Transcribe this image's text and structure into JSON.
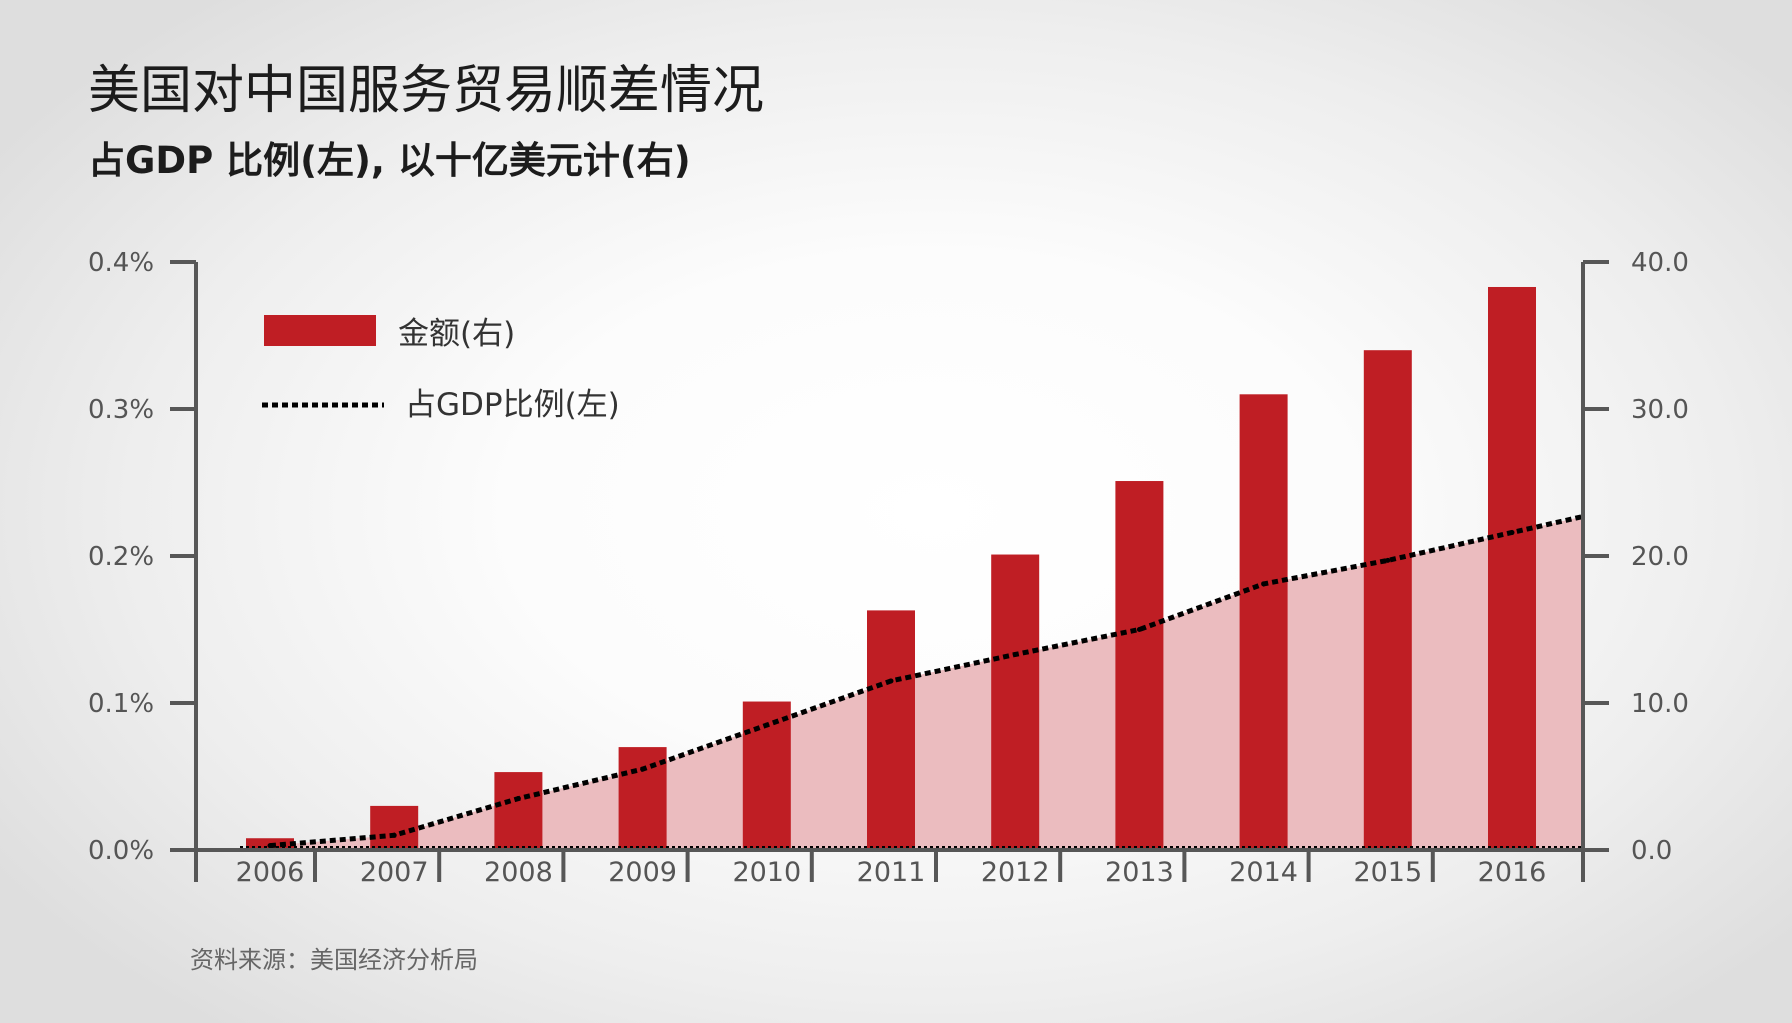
{
  "title": "美国对中国服务贸易顺差情况",
  "subtitle": "占GDP 比例(左), 以十亿美元计(右)",
  "source": "资料来源：美国经济分析局",
  "colors": {
    "bar": "#bf1e24",
    "area_fill": "#ebbcbf",
    "axis": "#575757",
    "line": "#000000"
  },
  "chart_data": {
    "type": "bar",
    "categories": [
      "2006",
      "2007",
      "2008",
      "2009",
      "2010",
      "2011",
      "2012",
      "2013",
      "2014",
      "2015",
      "2016"
    ],
    "series": [
      {
        "name": "金额(右)",
        "type": "bar",
        "axis": "right",
        "values": [
          0.8,
          3.0,
          5.3,
          7.0,
          10.1,
          16.3,
          20.1,
          25.1,
          31.0,
          34.0,
          38.3
        ]
      },
      {
        "name": "占GDP比例(左)",
        "type": "line",
        "style": "dotted",
        "axis": "left",
        "area": true,
        "values": [
          0.003,
          0.01,
          0.035,
          0.055,
          0.085,
          0.115,
          0.133,
          0.15,
          0.181,
          0.197,
          0.216
        ]
      }
    ],
    "y_left": {
      "ticks": [
        "0.0%",
        "0.1%",
        "0.2%",
        "0.3%",
        "0.4%"
      ],
      "ylim": [
        0,
        0.4
      ]
    },
    "y_right": {
      "ticks": [
        "0.0",
        "10.0",
        "20.0",
        "30.0",
        "40.0"
      ],
      "ylim": [
        0,
        40
      ]
    },
    "legend_position": "top-left",
    "grid": false
  }
}
